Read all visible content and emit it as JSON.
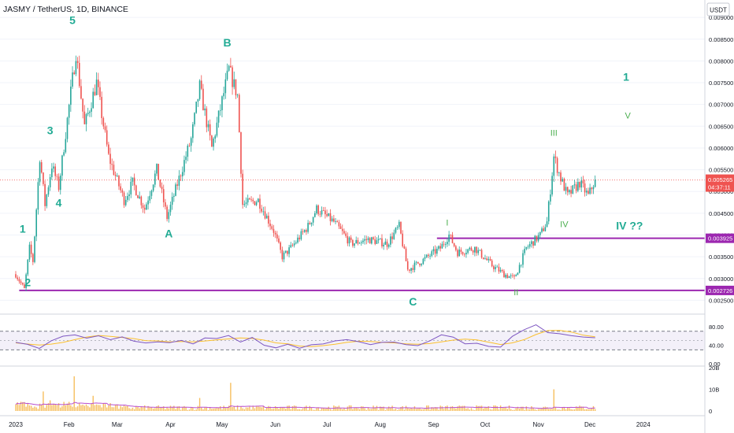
{
  "header": {
    "title": "JASMY / TetherUS, 1D, BINANCE",
    "currency_button": "USDT"
  },
  "colors": {
    "up": "#26a69a",
    "down": "#ef5350",
    "wave_label": "#22ab94",
    "wave_label_olive": "#4caf50",
    "horizontal_level": "#9c27b0",
    "rsi_line": "#7e57c2",
    "rsi_ma": "#fbc02d",
    "volume_up": "#f5b342",
    "volume_down": "#f5b342",
    "volume_ma": "#b84fcf",
    "current_price_tag": "#ef5350",
    "level_tag": "#9c27b0"
  },
  "chart_data": [
    {
      "type": "candlestick",
      "title": "JASMY / TetherUS, 1D, BINANCE",
      "x_tick_labels": [
        "2023",
        "Feb",
        "Mar",
        "Apr",
        "May",
        "Jun",
        "Jul",
        "Aug",
        "Sep",
        "Oct",
        "Nov",
        "Dec",
        "2024"
      ],
      "y_tick_labels": [
        "0.009000",
        "0.008500",
        "0.008000",
        "0.007500",
        "0.007000",
        "0.006500",
        "0.006000",
        "0.005500",
        "0.005000",
        "0.004500",
        "0.004000",
        "0.003500",
        "0.003000",
        "0.002500"
      ],
      "ylim": [
        0.0022,
        0.0094
      ],
      "price_path": [
        {
          "x": "2023-01-01",
          "y": 0.0031
        },
        {
          "x": "2023-01-06",
          "y": 0.00275
        },
        {
          "x": "2023-01-09",
          "y": 0.0037
        },
        {
          "x": "2023-01-11",
          "y": 0.0034
        },
        {
          "x": "2023-01-15",
          "y": 0.0058
        },
        {
          "x": "2023-01-18",
          "y": 0.0047
        },
        {
          "x": "2023-01-22",
          "y": 0.0056
        },
        {
          "x": "2023-01-26",
          "y": 0.0051
        },
        {
          "x": "2023-02-05",
          "y": 0.0082
        },
        {
          "x": "2023-02-10",
          "y": 0.0065
        },
        {
          "x": "2023-02-17",
          "y": 0.0075
        },
        {
          "x": "2023-02-24",
          "y": 0.0058
        },
        {
          "x": "2023-03-05",
          "y": 0.0048
        },
        {
          "x": "2023-03-10",
          "y": 0.0052
        },
        {
          "x": "2023-03-17",
          "y": 0.0046
        },
        {
          "x": "2023-03-24",
          "y": 0.0055
        },
        {
          "x": "2023-03-30",
          "y": 0.0044
        },
        {
          "x": "2023-04-13",
          "y": 0.0062
        },
        {
          "x": "2023-04-18",
          "y": 0.0074
        },
        {
          "x": "2023-04-25",
          "y": 0.006
        },
        {
          "x": "2023-05-05",
          "y": 0.0078
        },
        {
          "x": "2023-05-10",
          "y": 0.0072
        },
        {
          "x": "2023-05-13",
          "y": 0.0047
        },
        {
          "x": "2023-05-22",
          "y": 0.0048
        },
        {
          "x": "2023-05-31",
          "y": 0.0041
        },
        {
          "x": "2023-06-05",
          "y": 0.0035
        },
        {
          "x": "2023-06-10",
          "y": 0.0037
        },
        {
          "x": "2023-06-20",
          "y": 0.0042
        },
        {
          "x": "2023-06-25",
          "y": 0.0046
        },
        {
          "x": "2023-07-05",
          "y": 0.0043
        },
        {
          "x": "2023-07-15",
          "y": 0.0038
        },
        {
          "x": "2023-07-25",
          "y": 0.0039
        },
        {
          "x": "2023-08-05",
          "y": 0.0038
        },
        {
          "x": "2023-08-12",
          "y": 0.0042
        },
        {
          "x": "2023-08-17",
          "y": 0.0032
        },
        {
          "x": "2023-08-25",
          "y": 0.0034
        },
        {
          "x": "2023-09-05",
          "y": 0.0037
        },
        {
          "x": "2023-09-10",
          "y": 0.004
        },
        {
          "x": "2023-09-15",
          "y": 0.0036
        },
        {
          "x": "2023-09-25",
          "y": 0.0037
        },
        {
          "x": "2023-10-05",
          "y": 0.0033
        },
        {
          "x": "2023-10-12",
          "y": 0.0031
        },
        {
          "x": "2023-10-18",
          "y": 0.003
        },
        {
          "x": "2023-10-25",
          "y": 0.0037
        },
        {
          "x": "2023-11-02",
          "y": 0.004
        },
        {
          "x": "2023-11-06",
          "y": 0.0043
        },
        {
          "x": "2023-11-10",
          "y": 0.0058
        },
        {
          "x": "2023-11-14",
          "y": 0.0053
        },
        {
          "x": "2023-11-18",
          "y": 0.0049
        },
        {
          "x": "2023-11-25",
          "y": 0.0052
        },
        {
          "x": "2023-11-30",
          "y": 0.0049
        },
        {
          "x": "2023-12-04",
          "y": 0.00527
        }
      ],
      "horizontal_levels": [
        {
          "label": "0.003925",
          "y": 0.003925,
          "from": "2023-09-03"
        },
        {
          "label": "0.002726",
          "y": 0.002726,
          "from": "2023-01-03"
        }
      ],
      "current_price": {
        "value": "0.005265",
        "countdown": "04:37:11",
        "y": 0.005265
      },
      "wave_labels": [
        {
          "text": "5",
          "x": "2023-02-03",
          "y": 0.00885
        },
        {
          "text": "B",
          "x": "2023-05-04",
          "y": 0.00833
        },
        {
          "text": "3",
          "x": "2023-01-21",
          "y": 0.00632
        },
        {
          "text": "4",
          "x": "2023-01-26",
          "y": 0.00465
        },
        {
          "text": "1",
          "x": "2023-01-05",
          "y": 0.00405
        },
        {
          "text": "2",
          "x": "2023-01-08",
          "y": 0.00282
        },
        {
          "text": "A",
          "x": "2023-03-31",
          "y": 0.00395
        },
        {
          "text": "C",
          "x": "2023-08-20",
          "y": 0.00238
        },
        {
          "text": "I",
          "x": "2023-09-09",
          "y": 0.00422
        },
        {
          "text": "II",
          "x": "2023-10-19",
          "y": 0.00262
        },
        {
          "text": "III",
          "x": "2023-11-10",
          "y": 0.00628
        },
        {
          "text": "IV",
          "x": "2023-11-16",
          "y": 0.00418
        },
        {
          "text": "IV ??",
          "x": "2023-12-24",
          "y": 0.00413
        },
        {
          "text": "1",
          "x": "2023-12-22",
          "y": 0.00755
        },
        {
          "text": "V",
          "x": "2023-12-23",
          "y": 0.00668
        }
      ]
    },
    {
      "type": "line",
      "name": "RSI",
      "y_tick_labels": [
        "80.00",
        "40.00",
        "0.00"
      ],
      "ylim": [
        0,
        100
      ],
      "upper_band": 70,
      "lower_band": 30,
      "middle": 50,
      "series": [
        {
          "values": [
            45,
            40,
            36,
            48,
            60,
            64,
            58,
            62,
            52,
            55,
            48,
            44,
            50,
            46,
            52,
            40,
            58,
            56,
            60,
            48,
            54,
            42,
            36,
            40,
            34,
            38,
            44,
            52,
            50,
            48,
            42,
            44,
            46,
            40,
            38,
            50,
            60,
            56,
            46,
            44,
            40,
            36,
            60,
            72,
            84,
            70,
            62,
            58,
            56,
            56
          ]
        }
      ]
    },
    {
      "type": "bar",
      "name": "Volume",
      "y_tick_labels": [
        "20B",
        "10B",
        "0"
      ],
      "ylim": [
        0,
        20
      ],
      "spikes": [
        {
          "x": "2023-02-04",
          "y": 16
        },
        {
          "x": "2023-05-06",
          "y": 13
        },
        {
          "x": "2023-01-17",
          "y": 9
        },
        {
          "x": "2023-11-10",
          "y": 10
        },
        {
          "x": "2023-02-15",
          "y": 7
        },
        {
          "x": "2023-04-18",
          "y": 6
        }
      ]
    }
  ]
}
